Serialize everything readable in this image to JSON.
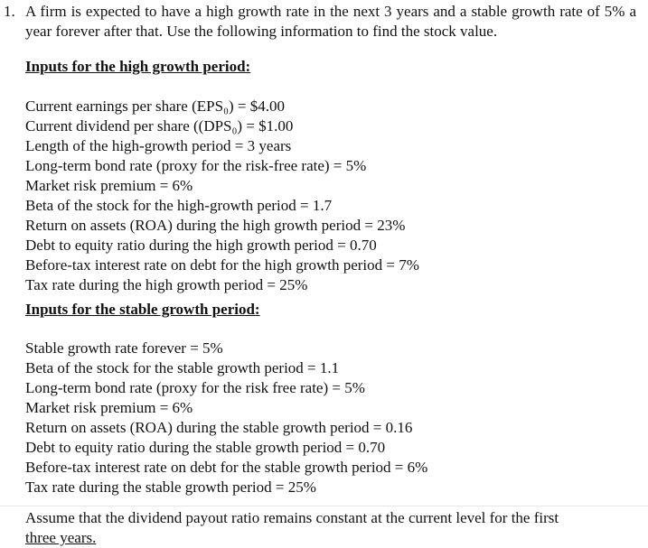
{
  "question": {
    "number": "1.",
    "text": "A firm is expected to have a high growth rate in the next 3 years and a stable growth rate of 5% a year forever after that.  Use the following information to find the stock value."
  },
  "high_growth": {
    "heading": "Inputs for the high growth period:",
    "items": [
      "Current earnings per share (EPS₀) = $4.00",
      "Current dividend per share ((DPS₀) = $1.00",
      "Length of the high-growth period = 3 years",
      "Long-term bond rate (proxy for the risk-free rate) = 5%",
      "Market risk premium = 6%",
      "Beta of the stock for the high-growth period = 1.7",
      "Return on assets (ROA) during the high growth period = 23%",
      "Debt to equity ratio during the high growth period = 0.70",
      "Before-tax interest rate on debt for the high growth period = 7%",
      "Tax rate during the high growth period = 25%"
    ]
  },
  "stable_growth": {
    "heading": "Inputs for the stable growth period:",
    "items": [
      "Stable growth rate forever = 5%",
      "Beta of the stock for the stable growth period = 1.1",
      "Long-term bond rate (proxy for the risk free rate) = 5%",
      "Market risk premium = 6%",
      "Return on assets (ROA) during the stable growth period = 0.16",
      "Debt to equity ratio during the stable growth period = 0.70",
      "Before-tax interest rate on debt for the stable growth period = 6%",
      "Tax rate during the stable growth period = 25%"
    ]
  },
  "closing": {
    "line1": "Assume that the dividend payout ratio remains constant at the current level for the first",
    "line2": "three years."
  }
}
